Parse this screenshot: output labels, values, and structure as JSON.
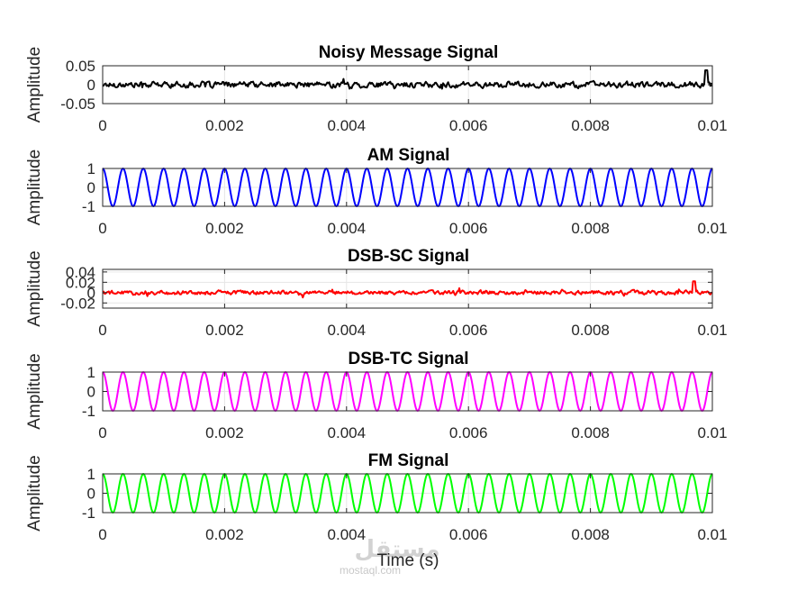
{
  "chart_data": [
    {
      "type": "line",
      "title": "Noisy Message Signal",
      "ylabel": "Amplitude",
      "xlabel": "",
      "xlim": [
        0,
        0.01
      ],
      "ylim": [
        -0.05,
        0.05
      ],
      "xticks": [
        0,
        0.002,
        0.004,
        0.006,
        0.008,
        0.01
      ],
      "xtick_labels": [
        "0",
        "0.002",
        "0.004",
        "0.006",
        "0.008",
        "0.01"
      ],
      "yticks": [
        -0.05,
        0,
        0.05
      ],
      "ytick_labels": [
        "-0.05",
        "0",
        "0.05"
      ],
      "grid": true,
      "series": [
        {
          "color": "#000000",
          "kind": "noise",
          "noise_amplitude": 0.012,
          "peak": [
            0.0099,
            0.038
          ]
        }
      ]
    },
    {
      "type": "line",
      "title": "AM Signal",
      "ylabel": "Amplitude",
      "xlabel": "",
      "xlim": [
        0,
        0.01
      ],
      "ylim": [
        -1,
        1
      ],
      "xticks": [
        0,
        0.002,
        0.004,
        0.006,
        0.008,
        0.01
      ],
      "xtick_labels": [
        "0",
        "0.002",
        "0.004",
        "0.006",
        "0.008",
        "0.01"
      ],
      "yticks": [
        -1,
        0,
        1
      ],
      "ytick_labels": [
        "-1",
        "0",
        "1"
      ],
      "grid": true,
      "series": [
        {
          "color": "#0000ff",
          "kind": "cosine",
          "amplitude": 1,
          "frequency_hz": 3000
        }
      ]
    },
    {
      "type": "line",
      "title": "DSB-SC Signal",
      "ylabel": "Amplitude",
      "xlabel": "",
      "xlim": [
        0,
        0.01
      ],
      "ylim": [
        -0.03,
        0.045
      ],
      "xticks": [
        0,
        0.002,
        0.004,
        0.006,
        0.008,
        0.01
      ],
      "xtick_labels": [
        "0",
        "0.002",
        "0.004",
        "0.006",
        "0.008",
        "0.01"
      ],
      "yticks": [
        -0.02,
        0,
        0.02,
        0.04
      ],
      "ytick_labels": [
        "-0.02",
        "0",
        "0.02",
        "0.04"
      ],
      "grid": true,
      "series": [
        {
          "color": "#ff0000",
          "kind": "noise",
          "noise_amplitude": 0.006,
          "peak": [
            0.0097,
            0.022
          ]
        }
      ]
    },
    {
      "type": "line",
      "title": "DSB-TC Signal",
      "ylabel": "Amplitude",
      "xlabel": "",
      "xlim": [
        0,
        0.01
      ],
      "ylim": [
        -1,
        1
      ],
      "xticks": [
        0,
        0.002,
        0.004,
        0.006,
        0.008,
        0.01
      ],
      "xtick_labels": [
        "0",
        "0.002",
        "0.004",
        "0.006",
        "0.008",
        "0.01"
      ],
      "yticks": [
        -1,
        0,
        1
      ],
      "ytick_labels": [
        "-1",
        "0",
        "1"
      ],
      "grid": true,
      "series": [
        {
          "color": "#ff00ff",
          "kind": "cosine",
          "amplitude": 1,
          "frequency_hz": 3000
        }
      ]
    },
    {
      "type": "line",
      "title": "FM Signal",
      "ylabel": "Amplitude",
      "xlabel": "Time (s)",
      "xlim": [
        0,
        0.01
      ],
      "ylim": [
        -1,
        1
      ],
      "xticks": [
        0,
        0.002,
        0.004,
        0.006,
        0.008,
        0.01
      ],
      "xtick_labels": [
        "0",
        "0.002",
        "0.004",
        "0.006",
        "0.008",
        "0.01"
      ],
      "yticks": [
        -1,
        0,
        1
      ],
      "ytick_labels": [
        "-1",
        "0",
        "1"
      ],
      "grid": true,
      "series": [
        {
          "color": "#00ff00",
          "kind": "cosine",
          "amplitude": 1,
          "frequency_hz": 3000
        }
      ]
    }
  ],
  "watermark": {
    "arabic": "مستقل",
    "latin": "mostaql.com"
  }
}
